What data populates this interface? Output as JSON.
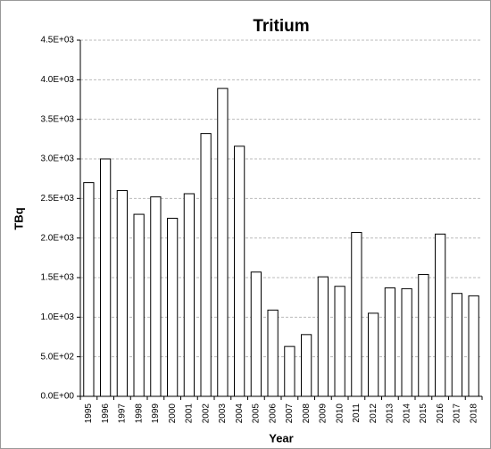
{
  "chart_data": {
    "type": "bar",
    "title": "Tritium",
    "xlabel": "Year",
    "ylabel": "TBq",
    "categories": [
      "1995",
      "1996",
      "1997",
      "1998",
      "1999",
      "2000",
      "2001",
      "2002",
      "2003",
      "2004",
      "2005",
      "2006",
      "2007",
      "2008",
      "2009",
      "2010",
      "2011",
      "2012",
      "2013",
      "2014",
      "2015",
      "2016",
      "2017",
      "2018"
    ],
    "values": [
      2700,
      3000,
      2600,
      2300,
      2520,
      2250,
      2560,
      3320,
      3890,
      3160,
      1570,
      1090,
      630,
      780,
      1510,
      1390,
      2070,
      1050,
      1370,
      1360,
      1540,
      2050,
      1300,
      1270
    ],
    "color": "#ffffff",
    "ylim": [
      0,
      4500
    ],
    "yticks": [
      {
        "value": 0,
        "label": "0.0E+00"
      },
      {
        "value": 500,
        "label": "5.0E+02"
      },
      {
        "value": 1000,
        "label": "1.0E+03"
      },
      {
        "value": 1500,
        "label": "1.5E+03"
      },
      {
        "value": 2000,
        "label": "2.0E+03"
      },
      {
        "value": 2500,
        "label": "2.5E+03"
      },
      {
        "value": 3000,
        "label": "3.0E+03"
      },
      {
        "value": 3500,
        "label": "3.5E+03"
      },
      {
        "value": 4000,
        "label": "4.0E+03"
      },
      {
        "value": 4500,
        "label": "4.5E+03"
      }
    ],
    "grid": true
  }
}
